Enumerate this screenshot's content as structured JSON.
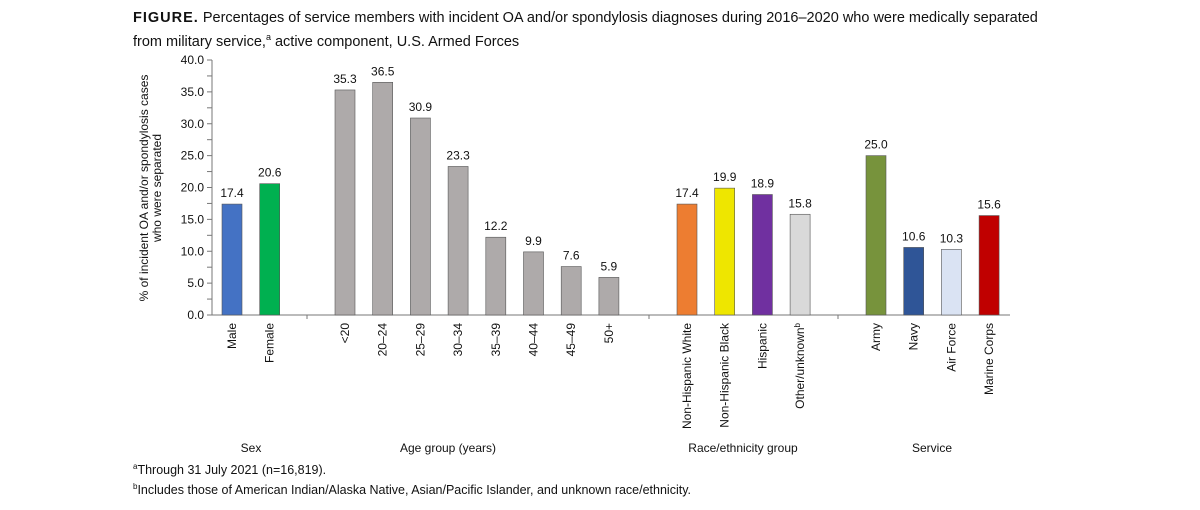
{
  "title_prefix": "FIGURE.",
  "title_line1": "Percentages of service members with incident OA and/or spondylosis diagnoses during 2016–2020 who were medically separated",
  "title_line2_a": "from military service,",
  "title_line2_sup": "a",
  "title_line2_b": " active component, U.S. Armed Forces",
  "footnotes": {
    "a_sup": "a",
    "a": "Through 31 July 2021 (n=16,819).",
    "b_sup": "b",
    "b": "Includes those of American Indian/Alaska Native, Asian/Pacific Islander, and unknown race/ethnicity."
  },
  "chart_data": {
    "type": "bar",
    "ylabel_line1": "% of incident OA and/or spondylosis cases",
    "ylabel_line2": "who were separated",
    "ylim": [
      0,
      40
    ],
    "yticks": [
      "0.0",
      "5.0",
      "10.0",
      "15.0",
      "20.0",
      "25.0",
      "30.0",
      "35.0",
      "40.0"
    ],
    "grid": false,
    "groups": [
      {
        "label": "Sex",
        "bars": [
          {
            "category": "Male",
            "value": 17.4,
            "color": "#4472C4"
          },
          {
            "category": "Female",
            "value": 20.6,
            "color": "#00B050"
          }
        ]
      },
      {
        "label": "Age group (years)",
        "bars": [
          {
            "category": "<20",
            "value": 35.3,
            "color": "#AEAAAA"
          },
          {
            "category": "20–24",
            "value": 36.5,
            "color": "#AEAAAA"
          },
          {
            "category": "25–29",
            "value": 30.9,
            "color": "#AEAAAA"
          },
          {
            "category": "30–34",
            "value": 23.3,
            "color": "#AEAAAA"
          },
          {
            "category": "35–39",
            "value": 12.2,
            "color": "#AEAAAA"
          },
          {
            "category": "40–44",
            "value": 9.9,
            "color": "#AEAAAA"
          },
          {
            "category": "45–49",
            "value": 7.6,
            "color": "#AEAAAA"
          },
          {
            "category": "50+",
            "value": 5.9,
            "color": "#AEAAAA"
          }
        ]
      },
      {
        "label": "Race/ethnicity group",
        "bars": [
          {
            "category": "Non-Hispanic White",
            "value": 17.4,
            "color": "#ED7D31"
          },
          {
            "category": "Non-Hispanic Black",
            "value": 19.9,
            "color": "#EEE600"
          },
          {
            "category": "Hispanic",
            "value": 18.9,
            "color": "#7030A0"
          },
          {
            "category": "Other/unknown",
            "sup": "b",
            "value": 15.8,
            "color": "#D9D9D9"
          }
        ]
      },
      {
        "label": "Service",
        "bars": [
          {
            "category": "Army",
            "value": 25.0,
            "color": "#77933C"
          },
          {
            "category": "Navy",
            "value": 10.6,
            "color": "#2F5597"
          },
          {
            "category": "Air Force",
            "value": 10.3,
            "color": "#DAE3F3"
          },
          {
            "category": "Marine Corps",
            "value": 15.6,
            "color": "#C00000"
          }
        ]
      }
    ]
  }
}
